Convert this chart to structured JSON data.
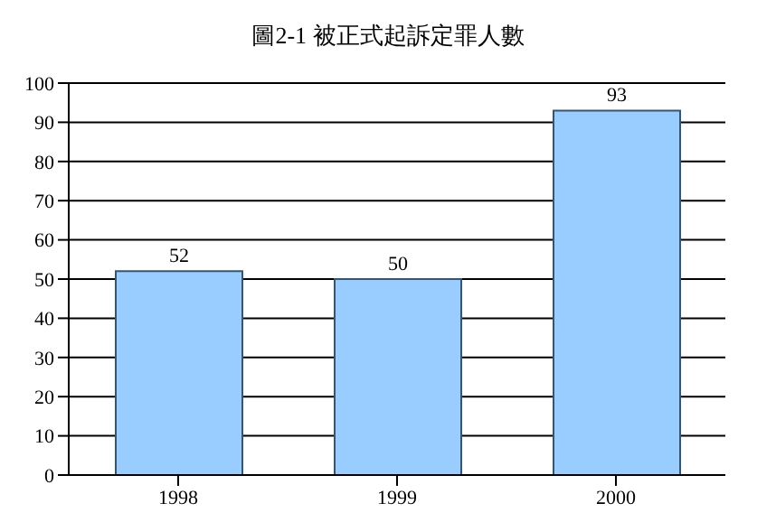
{
  "chart_data": {
    "type": "bar",
    "title": "圖2-1 被正式起訴定罪人數",
    "categories": [
      "1998",
      "1999",
      "2000"
    ],
    "values": [
      52,
      50,
      93
    ],
    "color": "#99ccff",
    "ylim": [
      0,
      100
    ],
    "yticks": [
      0,
      10,
      20,
      30,
      40,
      50,
      60,
      70,
      80,
      90,
      100
    ],
    "grid": "y",
    "data_labels": true
  }
}
